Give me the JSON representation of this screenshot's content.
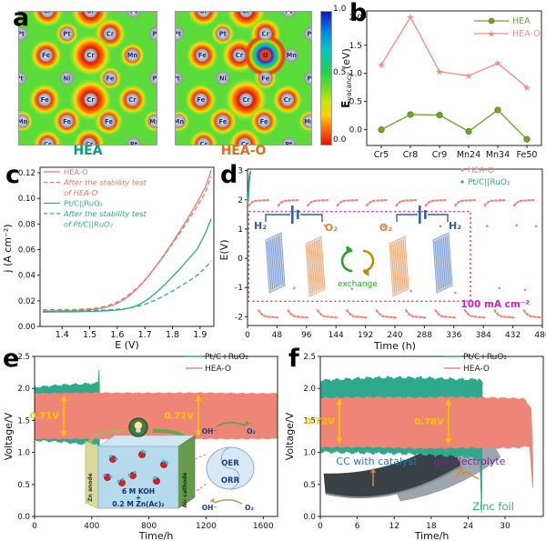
{
  "colors": {
    "teal": "#2fa98c",
    "salmon": "#ef8576",
    "salmon_line": "#e2796b",
    "green": "#6fa52f",
    "gold": "#ffc400",
    "magenta": "#cb1ecb",
    "navy": "#2c4a9e",
    "orange": "#e2862b",
    "blue_label": "#2277bb",
    "purple_label": "#7b22a8",
    "green_label": "#2db56a",
    "hea_caption": "#00a17c",
    "heao_caption": "#e0701a"
  },
  "panels": {
    "a": {
      "letter": "a",
      "maps": [
        {
          "name": "HEA",
          "atoms": [
            [
              0.21,
              0.0,
              "Cr",
              18
            ],
            [
              0.52,
              0.0,
              "Cr",
              22
            ],
            [
              0.83,
              0.0,
              "Pt",
              0
            ],
            [
              0.02,
              0.17,
              "Pt",
              0
            ],
            [
              0.35,
              0.17,
              "Pt",
              13
            ],
            [
              0.66,
              0.17,
              "Cr",
              18
            ],
            [
              0.99,
              0.17,
              "Pt",
              0
            ],
            [
              0.2,
              0.33,
              "Fe",
              18
            ],
            [
              0.52,
              0.33,
              "Cr",
              24
            ],
            [
              0.82,
              0.33,
              "Mn",
              14
            ],
            [
              0.01,
              0.5,
              "Pt",
              0
            ],
            [
              0.35,
              0.5,
              "Ni",
              0
            ],
            [
              0.66,
              0.5,
              "Fe",
              13
            ],
            [
              0.99,
              0.5,
              "Pt",
              0
            ],
            [
              0.19,
              0.66,
              "Fe",
              18
            ],
            [
              0.52,
              0.66,
              "Cr",
              24
            ],
            [
              0.82,
              0.66,
              "Cr",
              17
            ],
            [
              0.03,
              0.82,
              "Mn",
              12
            ],
            [
              0.35,
              0.82,
              "Fe",
              16
            ],
            [
              0.65,
              0.82,
              "Fe",
              16
            ],
            [
              0.98,
              0.82,
              "Mn",
              12
            ],
            [
              0.21,
              0.99,
              "Cr",
              16
            ],
            [
              0.51,
              0.99,
              "Cr",
              18
            ],
            [
              0.83,
              0.99,
              "Pt",
              0
            ]
          ]
        },
        {
          "name": "HEA-O",
          "atoms": [
            [
              0.21,
              0.0,
              "Cr",
              18
            ],
            [
              0.52,
              0.0,
              "Cr",
              22
            ],
            [
              0.83,
              0.0,
              "Pt",
              0
            ],
            [
              0.02,
              0.17,
              "Pt",
              0
            ],
            [
              0.35,
              0.17,
              "Pt",
              13
            ],
            [
              0.66,
              0.17,
              "Cr",
              18
            ],
            [
              0.99,
              0.17,
              "Pt",
              0
            ],
            [
              0.2,
              0.33,
              "Fe",
              18
            ],
            [
              0.47,
              0.33,
              "Cr",
              20
            ],
            [
              0.66,
              0.33,
              "O",
              -1
            ],
            [
              0.85,
              0.33,
              "Mn",
              0
            ],
            [
              0.01,
              0.5,
              "Pt",
              0
            ],
            [
              0.35,
              0.5,
              "Ni",
              0
            ],
            [
              0.66,
              0.5,
              "Fe",
              13
            ],
            [
              0.99,
              0.5,
              "Pt",
              0
            ],
            [
              0.19,
              0.66,
              "Fe",
              18
            ],
            [
              0.52,
              0.66,
              "Cr",
              24
            ],
            [
              0.82,
              0.66,
              "Cr",
              17
            ],
            [
              0.03,
              0.82,
              "Mn",
              12
            ],
            [
              0.35,
              0.82,
              "Fe",
              16
            ],
            [
              0.65,
              0.82,
              "Fe",
              16
            ],
            [
              0.98,
              0.82,
              "Mn",
              12
            ],
            [
              0.21,
              0.99,
              "Cr",
              16
            ],
            [
              0.51,
              0.99,
              "Cr",
              18
            ],
            [
              0.83,
              0.99,
              "Pt",
              0
            ]
          ]
        }
      ],
      "colorbar": {
        "ticks": [
          "1.0",
          "0.5",
          "0.0"
        ]
      }
    },
    "b": {
      "letter": "b"
    },
    "c": {
      "letter": "c"
    },
    "d": {
      "letter": "d",
      "inset": {
        "h2": "H₂",
        "o2": "O₂",
        "exchange": "exchange"
      }
    },
    "e": {
      "letter": "e",
      "inset": {
        "zn_anode": "Zn anode",
        "air_cathode": "Air cathode",
        "koh": "6 M KOH",
        "plus": "+",
        "znac": "0.2 M Zn(Ac)₂",
        "oer": "OER",
        "orr": "ORR",
        "oh": "OH⁻",
        "o2": "O₂"
      }
    },
    "f": {
      "letter": "f",
      "inset": {
        "cc": "CC with catalyst",
        "gel": "gel electrolyte",
        "zinc": "Zinc foil"
      }
    }
  },
  "chart_data": [
    {
      "id": "b",
      "type": "line",
      "categories": [
        "Cr5",
        "Cr8",
        "Cr9",
        "Mn24",
        "Mn34",
        "Fe50"
      ],
      "series": [
        {
          "name": "HEA",
          "marker": "circle",
          "color": "#6fa52f",
          "values": [
            0.0,
            0.27,
            0.26,
            -0.03,
            0.35,
            -0.17
          ]
        },
        {
          "name": "HEA-O",
          "marker": "star",
          "color": "#f09086",
          "values": [
            1.15,
            2.0,
            1.03,
            0.96,
            1.18,
            0.75
          ]
        }
      ],
      "ylabel_main": "E",
      "ylabel_sub": "vacancy",
      "ylabel_rest": " (eV)",
      "ylim": [
        -0.28,
        2.11
      ],
      "ytick_v": [
        0.0,
        0.5,
        1.0,
        1.5,
        2.0
      ],
      "ytick_l": [
        "0.0",
        "0.5",
        "1.0",
        "1.5",
        "2.0"
      ],
      "legend_pos": "top-right"
    },
    {
      "id": "c",
      "type": "line",
      "xlabel": "E (V)",
      "ylabel": "j (A cm⁻²)",
      "xlim": [
        1.32,
        1.95
      ],
      "ylim": [
        0,
        0.128
      ],
      "xtick_v": [
        1.4,
        1.5,
        1.6,
        1.7,
        1.8,
        1.9
      ],
      "xtick_l": [
        "1.4",
        "1.5",
        "1.6",
        "1.7",
        "1.8",
        "1.9"
      ],
      "ytick_v": [
        0,
        0.02,
        0.04,
        0.06,
        0.08,
        0.1,
        0.12
      ],
      "ytick_l": [
        "0.00",
        "0.02",
        "0.04",
        "0.06",
        "0.08",
        "0.10",
        "0.12"
      ],
      "x": [
        1.33,
        1.4,
        1.45,
        1.5,
        1.53,
        1.56,
        1.59,
        1.62,
        1.65,
        1.68,
        1.71,
        1.74,
        1.77,
        1.8,
        1.83,
        1.86,
        1.89,
        1.92,
        1.94
      ],
      "series": [
        {
          "name": "HEA-O",
          "color": "salmon_line",
          "dash": false,
          "y": [
            0.012,
            0.0122,
            0.0125,
            0.013,
            0.0137,
            0.015,
            0.017,
            0.0205,
            0.025,
            0.0312,
            0.0385,
            0.047,
            0.056,
            0.0655,
            0.0755,
            0.086,
            0.097,
            0.109,
            0.122
          ]
        },
        {
          "name": "After the stability test of HEA-O",
          "color": "salmon_line",
          "dash": true,
          "y": [
            0.013,
            0.0132,
            0.0134,
            0.0138,
            0.0145,
            0.0158,
            0.018,
            0.0215,
            0.026,
            0.0318,
            0.0388,
            0.0468,
            0.0554,
            0.0645,
            0.074,
            0.0838,
            0.094,
            0.105,
            0.117
          ]
        },
        {
          "name": "Pt/C||RuO₂",
          "color": "teal",
          "dash": false,
          "y": [
            0.0112,
            0.0114,
            0.0115,
            0.0117,
            0.0119,
            0.0122,
            0.0126,
            0.0133,
            0.0147,
            0.0172,
            0.021,
            0.0262,
            0.0322,
            0.0388,
            0.0458,
            0.053,
            0.0605,
            0.073,
            0.084
          ]
        },
        {
          "name": "After the stability test of Pt/C||RuO₂",
          "color": "teal",
          "dash": true,
          "y": [
            0.0118,
            0.012,
            0.0122,
            0.0124,
            0.0126,
            0.0129,
            0.0132,
            0.0137,
            0.0146,
            0.016,
            0.018,
            0.0207,
            0.024,
            0.0276,
            0.0315,
            0.0356,
            0.04,
            0.046,
            0.051
          ]
        }
      ],
      "legend": [
        {
          "color": "salmon_line",
          "dash": false,
          "italic": false,
          "lines": [
            "HEA-O"
          ]
        },
        {
          "color": "salmon_line",
          "dash": true,
          "italic": true,
          "lines": [
            "After the stability test",
            "of HEA-O"
          ]
        },
        {
          "color": "teal",
          "dash": false,
          "italic": false,
          "lines": [
            "Pt/C||RuO₂"
          ]
        },
        {
          "color": "teal",
          "dash": true,
          "italic": true,
          "lines": [
            "After the stability test",
            "of Pt/C||RuO₂"
          ]
        }
      ]
    },
    {
      "id": "d",
      "type": "scatter",
      "xlabel": "Time (h)",
      "ylabel": "E(V)",
      "xlim": [
        0,
        480
      ],
      "ylim": [
        -2.3,
        3.05
      ],
      "xtick_v": [
        0,
        48,
        96,
        144,
        192,
        240,
        288,
        336,
        384,
        432,
        480
      ],
      "ytick_v": [
        -2,
        -1,
        0,
        1,
        2,
        3
      ],
      "legend": [
        {
          "label": "HEA-O",
          "color": "salmon"
        },
        {
          "label": "Pt/C||RuO₂",
          "color": "teal"
        }
      ],
      "charge_voltage": 1.98,
      "discharge_voltage": -2.0,
      "charge_segments": [
        [
          2,
          34
        ],
        [
          50,
          82
        ],
        [
          98,
          130
        ],
        [
          146,
          178
        ],
        [
          194,
          226
        ],
        [
          242,
          274
        ],
        [
          290,
          322
        ],
        [
          338,
          370
        ],
        [
          386,
          418
        ],
        [
          434,
          466
        ]
      ],
      "discharge_segments": [
        [
          18,
          50
        ],
        [
          66,
          98
        ],
        [
          114,
          146
        ],
        [
          162,
          194
        ],
        [
          210,
          242
        ],
        [
          258,
          290
        ],
        [
          306,
          338
        ],
        [
          354,
          386
        ],
        [
          402,
          434
        ],
        [
          450,
          479
        ]
      ],
      "stray_points": [
        [
          126,
          1.12
        ],
        [
          222,
          1.08
        ],
        [
          314,
          1.1
        ],
        [
          390,
          1.1
        ],
        [
          438,
          1.12
        ],
        [
          470,
          1.1
        ],
        [
          76,
          -1.02
        ],
        [
          170,
          -1.05
        ],
        [
          266,
          -1.12
        ],
        [
          338,
          -1.18
        ],
        [
          410,
          -1.02
        ],
        [
          452,
          -1.08
        ]
      ],
      "ptc_initial": [
        [
          0.5,
          1.92
        ],
        [
          1.5,
          2.15
        ],
        [
          2.0,
          2.4
        ],
        [
          2.5,
          2.65
        ],
        [
          3.5,
          2.85
        ],
        [
          5.0,
          2.95
        ]
      ],
      "current_density": "100 mA cm⁻²"
    },
    {
      "id": "e",
      "type": "band",
      "xlabel": "Time/h",
      "ylabel": "Voltage/V",
      "xlim": [
        0,
        1700
      ],
      "ylim": [
        0,
        2.5
      ],
      "xtick_v": [
        0,
        400,
        800,
        1200,
        1600
      ],
      "xtick_l": [
        "0",
        "400",
        "800",
        "1200",
        "1600"
      ],
      "ytick_v": [
        0,
        0.5,
        1,
        1.5,
        2,
        2.5
      ],
      "ytick_l": [
        "0.0",
        "0.5",
        "1.0",
        "1.5",
        "2.0",
        "2.5"
      ],
      "legend": [
        {
          "label": "Pt/C+RuO₂",
          "color": "teal"
        },
        {
          "label": "HEA-O",
          "color": "salmon"
        }
      ],
      "bands": [
        {
          "name": "Pt/C+RuO₂",
          "color": "teal",
          "amp": 0.028,
          "top": [
            [
              0,
              2.02
            ],
            [
              150,
              2.04
            ],
            [
              300,
              2.06
            ],
            [
              420,
              2.07
            ],
            [
              445,
              2.08
            ],
            [
              451,
              2.3
            ],
            [
              454,
              2.0
            ]
          ],
          "bottom": [
            [
              0,
              1.2
            ],
            [
              150,
              1.17
            ],
            [
              300,
              1.14
            ],
            [
              420,
              1.12
            ],
            [
              447,
              1.1
            ],
            [
              452,
              0.97
            ],
            [
              454,
              1.02
            ]
          ]
        },
        {
          "name": "HEA-O",
          "color": "salmon",
          "amp": 0.013,
          "top": [
            [
              0,
              1.92
            ],
            [
              800,
              1.93
            ],
            [
              1700,
              1.92
            ]
          ],
          "bottom": [
            [
              0,
              1.22
            ],
            [
              800,
              1.21
            ],
            [
              1700,
              1.22
            ]
          ]
        }
      ],
      "annotations": [
        {
          "x": 204,
          "y1": 1.24,
          "y2": 1.9,
          "label": "0.71V"
        },
        {
          "x": 1146,
          "y1": 1.24,
          "y2": 1.9,
          "label": "0.72V"
        }
      ]
    },
    {
      "id": "f",
      "type": "band",
      "xlabel": "Time/h",
      "ylabel": "Voltage/V",
      "xlim": [
        0,
        36.2
      ],
      "ylim": [
        0,
        2.5
      ],
      "xtick_v": [
        0,
        6,
        12,
        18,
        24,
        30
      ],
      "xtick_l": [
        "0",
        "6",
        "12",
        "18",
        "24",
        "30"
      ],
      "ytick_v": [
        0,
        0.5,
        1,
        1.5,
        2,
        2.5
      ],
      "ytick_l": [
        "0.0",
        "0.5",
        "1.0",
        "1.5",
        "2.0",
        "2.5"
      ],
      "legend": [
        {
          "label": "Pt/C+RuO₂",
          "color": "teal"
        },
        {
          "label": "HEA-O",
          "color": "salmon"
        }
      ],
      "bands": [
        {
          "name": "Pt/C+RuO₂",
          "color": "teal",
          "amp": 0.035,
          "top": [
            [
              0,
              2.13
            ],
            [
              8,
              2.16
            ],
            [
              16,
              2.16
            ],
            [
              24,
              2.14
            ],
            [
              25.8,
              2.15
            ],
            [
              26.3,
              2.1
            ]
          ],
          "bottom": [
            [
              0,
              1.02
            ],
            [
              8,
              0.99
            ],
            [
              16,
              0.97
            ],
            [
              24,
              0.94
            ],
            [
              25.9,
              0.9
            ],
            [
              26.2,
              0.06
            ]
          ]
        },
        {
          "name": "HEA-O",
          "color": "salmon",
          "amp": 0.02,
          "top": [
            [
              0,
              1.85
            ],
            [
              20,
              1.86
            ],
            [
              33,
              1.84
            ],
            [
              34.2,
              1.7
            ],
            [
              34.5,
              0.9
            ]
          ],
          "bottom": [
            [
              0,
              1.09
            ],
            [
              20,
              1.07
            ],
            [
              32,
              1.08
            ],
            [
              34,
              1.1
            ],
            [
              34.5,
              0.45
            ]
          ]
        }
      ],
      "annotations": [
        {
          "x": 3.1,
          "y1": 1.13,
          "y2": 1.84,
          "label": "0.72V"
        },
        {
          "x": 20.8,
          "y1": 1.12,
          "y2": 1.84,
          "label": "0.78V"
        }
      ]
    }
  ]
}
